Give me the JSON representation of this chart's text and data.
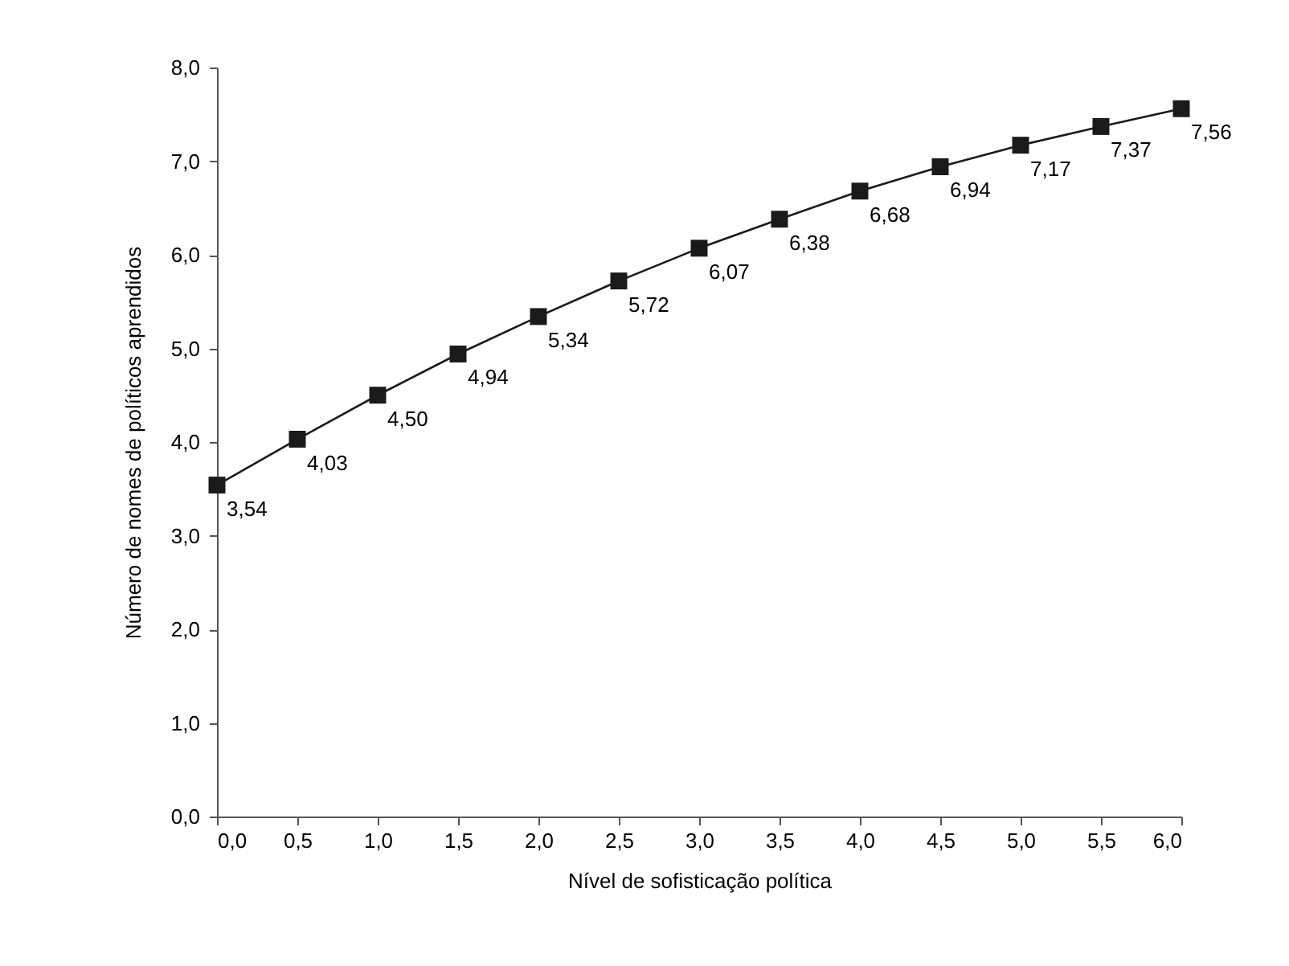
{
  "chart_data": {
    "type": "line",
    "xlabel": "Nível de sofisticação política",
    "ylabel": "Número de nomes de políticos aprendidos",
    "x": [
      0,
      0.5,
      1,
      1.5,
      2,
      2.5,
      3,
      3.5,
      4,
      4.5,
      5,
      5.5,
      6
    ],
    "series": [
      {
        "color": "#1a1a1a",
        "values": [
          3.54,
          4.03,
          4.5,
          4.94,
          5.34,
          5.72,
          6.07,
          6.38,
          6.68,
          6.94,
          7.17,
          7.37,
          7.56
        ],
        "value_labels": [
          "3,54",
          "4,03",
          "4,50",
          "4,94",
          "5,34",
          "5,72",
          "6,07",
          "6,38",
          "6,68",
          "6,94",
          "7,17",
          "7,37",
          "7,56"
        ]
      }
    ],
    "xlim": [
      0,
      6
    ],
    "ylim": [
      0,
      8
    ],
    "xticks": [
      {
        "value": 0,
        "label": "0,0"
      },
      {
        "value": 0.5,
        "label": "0,5"
      },
      {
        "value": 1,
        "label": "1,0"
      },
      {
        "value": 1.5,
        "label": "1,5"
      },
      {
        "value": 2,
        "label": "2,0"
      },
      {
        "value": 2.5,
        "label": "2,5"
      },
      {
        "value": 3,
        "label": "3,0"
      },
      {
        "value": 3.5,
        "label": "3,5"
      },
      {
        "value": 4,
        "label": "4,0"
      },
      {
        "value": 4.5,
        "label": "4,5"
      },
      {
        "value": 5,
        "label": "5,0"
      },
      {
        "value": 5.5,
        "label": "5,5"
      },
      {
        "value": 6,
        "label": "6,0"
      }
    ],
    "yticks": [
      {
        "value": 0,
        "label": "0,0"
      },
      {
        "value": 1,
        "label": "1,0"
      },
      {
        "value": 2,
        "label": "2,0"
      },
      {
        "value": 3,
        "label": "3,0"
      },
      {
        "value": 4,
        "label": "4,0"
      },
      {
        "value": 5,
        "label": "5,0"
      },
      {
        "value": 6,
        "label": "6,0"
      },
      {
        "value": 7,
        "label": "7,0"
      },
      {
        "value": 8,
        "label": "8,0"
      }
    ],
    "grid": false,
    "marker": "square",
    "line_style": "solid",
    "legend": false
  }
}
